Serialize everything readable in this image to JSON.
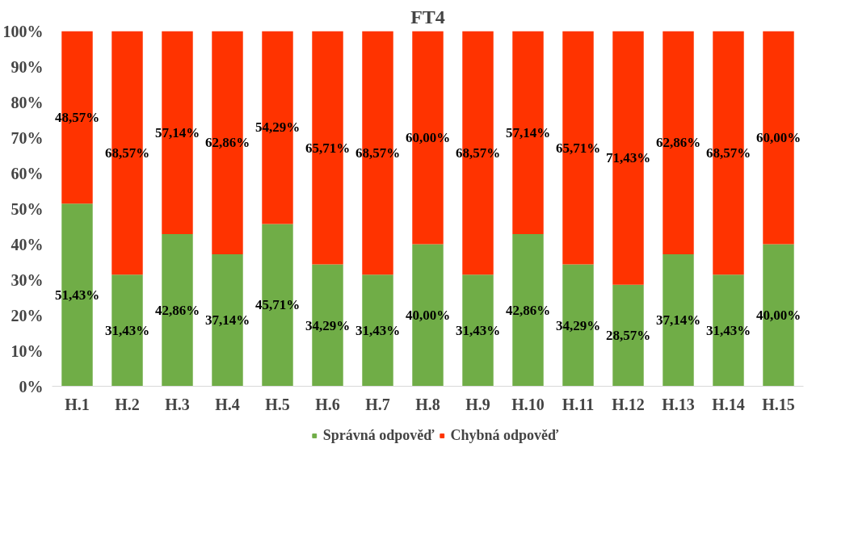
{
  "chart_data": {
    "type": "bar",
    "title": "FT4",
    "stacked": true,
    "legend": "bottom",
    "grid": false,
    "categories": [
      "H.1",
      "H.2",
      "H.3",
      "H.4",
      "H.5",
      "H.6",
      "H.7",
      "H.8",
      "H.9",
      "H.10",
      "H.11",
      "H.12",
      "H.13",
      "H.14",
      "H.15"
    ],
    "ylim": [
      0,
      100
    ],
    "yticks": [
      {
        "value": 0,
        "label": "0%"
      },
      {
        "value": 10,
        "label": "10%"
      },
      {
        "value": 20,
        "label": "20%"
      },
      {
        "value": 30,
        "label": "30%"
      },
      {
        "value": 40,
        "label": "40%"
      },
      {
        "value": 50,
        "label": "50%"
      },
      {
        "value": 60,
        "label": "60%"
      },
      {
        "value": 70,
        "label": "70%"
      },
      {
        "value": 80,
        "label": "80%"
      },
      {
        "value": 90,
        "label": "90%"
      },
      {
        "value": 100,
        "label": "100%"
      }
    ],
    "series": [
      {
        "name": "Správná odpověď",
        "color": "#70ad47",
        "values": [
          51.43,
          31.43,
          42.86,
          37.14,
          45.71,
          34.29,
          31.43,
          40.0,
          31.43,
          42.86,
          34.29,
          28.57,
          37.14,
          31.43,
          40.0
        ],
        "value_labels": [
          "51,43%",
          "31,43%",
          "42,86%",
          "37,14%",
          "45,71%",
          "34,29%",
          "31,43%",
          "40,00%",
          "31,43%",
          "42,86%",
          "34,29%",
          "28,57%",
          "37,14%",
          "31,43%",
          "40,00%"
        ]
      },
      {
        "name": "Chybná odpověď",
        "color": "#ff3300",
        "values": [
          48.57,
          68.57,
          57.14,
          62.86,
          54.29,
          65.71,
          68.57,
          60.0,
          68.57,
          57.14,
          65.71,
          71.43,
          62.86,
          68.57,
          60.0
        ],
        "value_labels": [
          "48,57%",
          "68,57%",
          "57,14%",
          "62,86%",
          "54,29%",
          "65,71%",
          "68,57%",
          "60,00%",
          "68,57%",
          "57,14%",
          "65,71%",
          "71,43%",
          "62,86%",
          "68,57%",
          "60,00%"
        ]
      }
    ]
  }
}
